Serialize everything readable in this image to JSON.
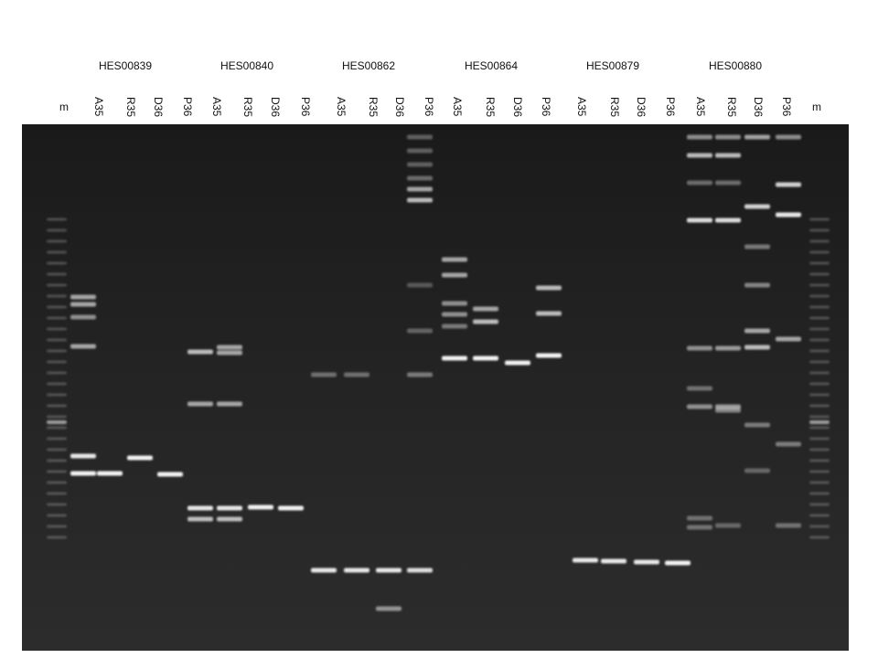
{
  "groups": [
    {
      "name": "HES00839",
      "lanes": [
        "A35",
        "R35",
        "D36",
        "P36"
      ]
    },
    {
      "name": "HES00840",
      "lanes": [
        "A35",
        "R35",
        "D36",
        "P36"
      ]
    },
    {
      "name": "HES00862",
      "lanes": [
        "A35",
        "R35",
        "D36",
        "P36"
      ]
    },
    {
      "name": "HES00864",
      "lanes": [
        "A35",
        "R35",
        "D36",
        "P36"
      ]
    },
    {
      "name": "HES00879",
      "lanes": [
        "A35",
        "R35",
        "D36",
        "P36"
      ]
    },
    {
      "name": "HES00880",
      "lanes": [
        "A35",
        "R35",
        "D36",
        "P36"
      ]
    }
  ],
  "markers": [
    "m",
    "m"
  ]
}
